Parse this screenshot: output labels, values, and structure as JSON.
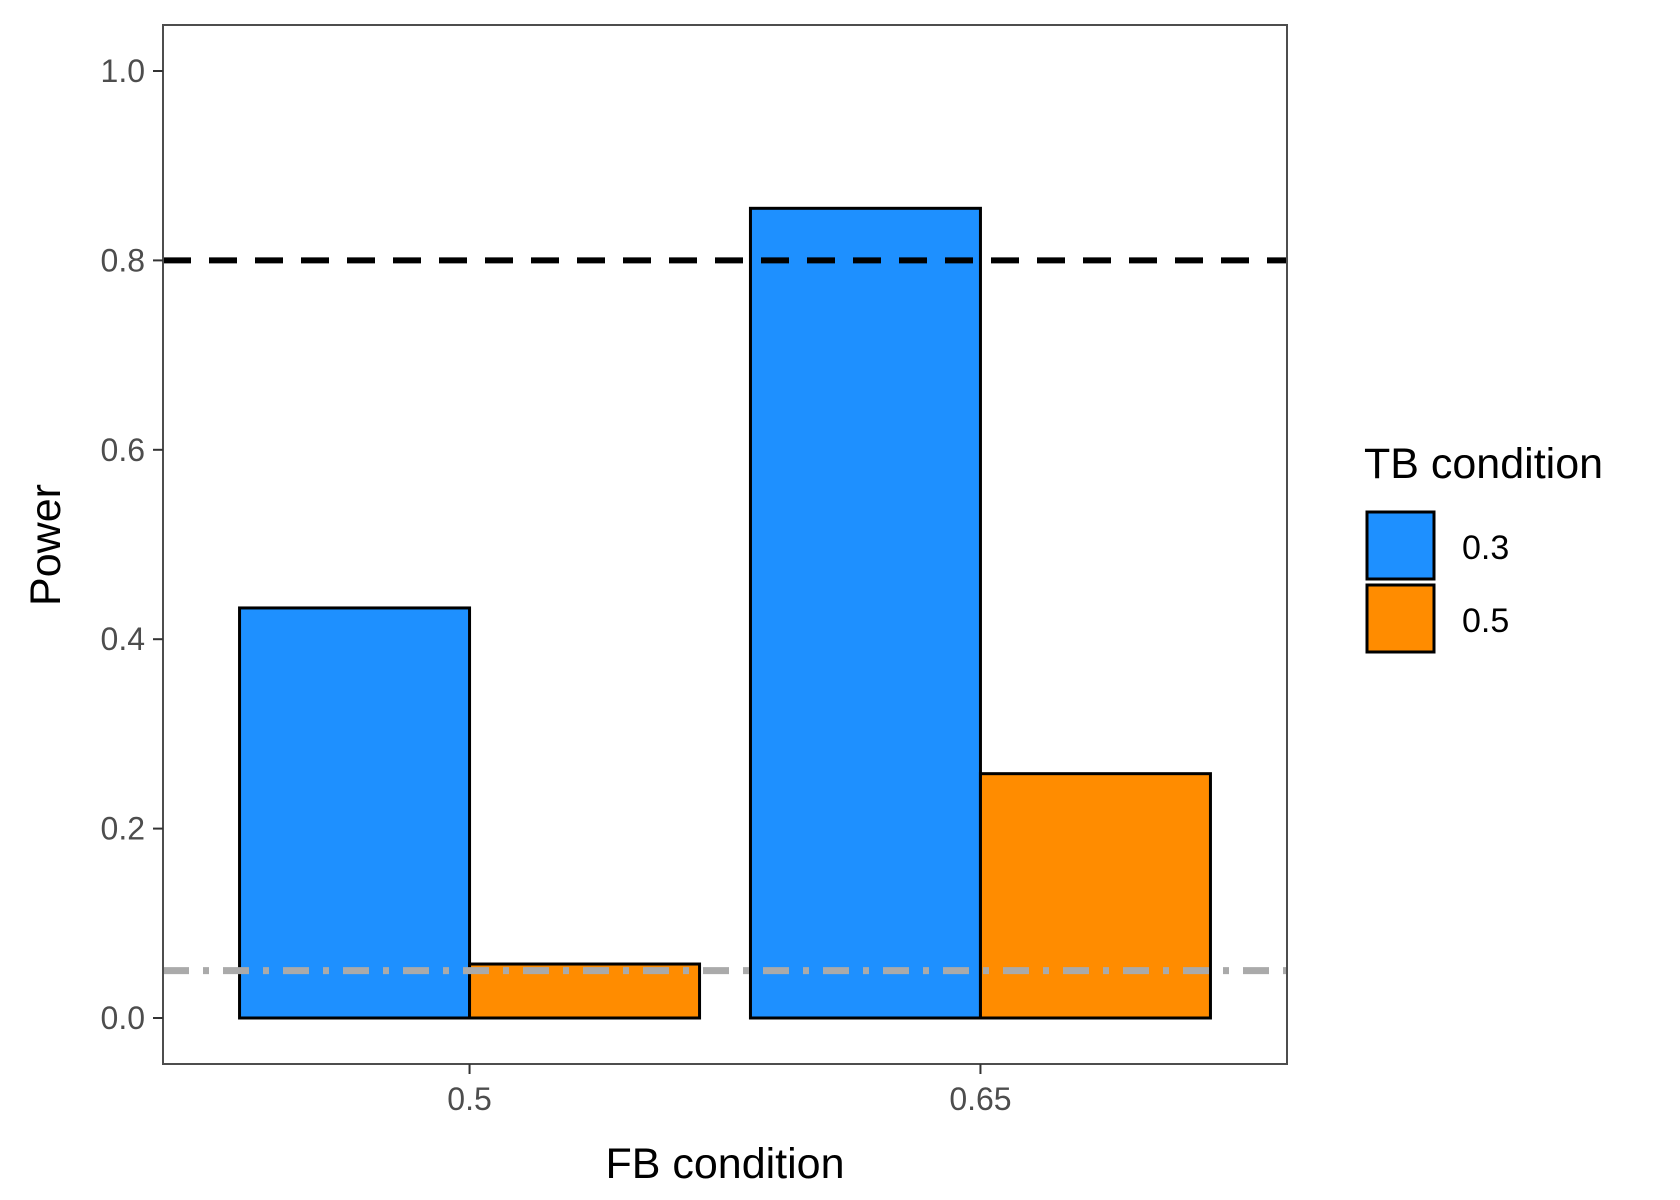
{
  "chart_data": {
    "type": "bar",
    "categories": [
      "0.5",
      "0.65"
    ],
    "series": [
      {
        "name": "0.3",
        "values": [
          0.433,
          0.855
        ],
        "color": "#1E90FF"
      },
      {
        "name": "0.5",
        "values": [
          0.057,
          0.258
        ],
        "color": "#FF8C00"
      }
    ],
    "xlabel": "FB condition",
    "ylabel": "Power",
    "ylim": [
      -0.05,
      1.05
    ],
    "yticks": [
      "0.0",
      "0.2",
      "0.4",
      "0.6",
      "0.8",
      "1.0"
    ],
    "legend": {
      "title": "TB condition",
      "position": "right"
    },
    "reference_lines": [
      {
        "value": 0.8,
        "style": "dashed",
        "color": "#000000"
      },
      {
        "value": 0.05,
        "style": "dotdash",
        "color": "#AAAAAA"
      }
    ],
    "grid": false
  }
}
